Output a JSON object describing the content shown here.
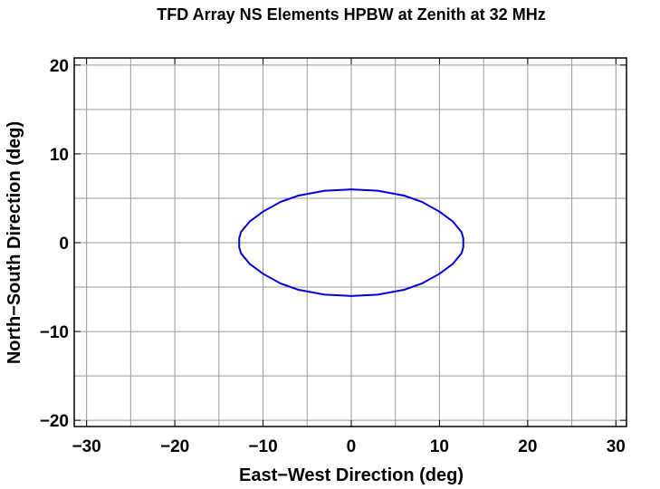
{
  "chart_data": {
    "type": "line",
    "title": "TFD Array NS Elements HPBW at Zenith at 32 MHz",
    "x_label": "East−West Direction (deg)",
    "y_label": "North−South Direction (deg)",
    "xlim": [
      -31.4,
      31.2
    ],
    "ylim": [
      -20.7,
      20.8
    ],
    "xticks": [
      {
        "value": -30,
        "label": "−30"
      },
      {
        "value": -20,
        "label": "−20"
      },
      {
        "value": -10,
        "label": "−10"
      },
      0,
      10,
      20,
      30
    ],
    "yticks": [
      {
        "value": -20,
        "label": "−20"
      },
      {
        "value": -10,
        "label": "−10"
      },
      0,
      10,
      20
    ],
    "xgrid": [
      -30,
      -25,
      -20,
      -15,
      -10,
      -5,
      0,
      5,
      10,
      15,
      20,
      25,
      30
    ],
    "ygrid": [
      -20,
      -15,
      -10,
      -5,
      0,
      5,
      10,
      15,
      20
    ],
    "grid": true,
    "grid_color": "#999999",
    "series": [
      {
        "color": "#0000dd",
        "x": [
          0,
          3,
          6,
          8,
          10,
          11.5,
          12.5,
          12.7,
          12.7,
          12.5,
          11.5,
          10,
          8,
          6,
          3,
          0,
          -3,
          -6,
          -8,
          -10,
          -11.5,
          -12.5,
          -12.7,
          -12.7,
          -12.5,
          -11.5,
          -10,
          -8,
          -6,
          -3,
          0
        ],
        "values": [
          6.0,
          5.85,
          5.3,
          4.6,
          3.5,
          2.4,
          1.2,
          0.5,
          -0.5,
          -1.2,
          -2.4,
          -3.5,
          -4.6,
          -5.3,
          -5.85,
          -6.0,
          -5.85,
          -5.3,
          -4.6,
          -3.5,
          -2.4,
          -1.2,
          -0.5,
          0.5,
          1.2,
          2.4,
          3.5,
          4.6,
          5.3,
          5.85,
          6.0
        ]
      }
    ]
  }
}
